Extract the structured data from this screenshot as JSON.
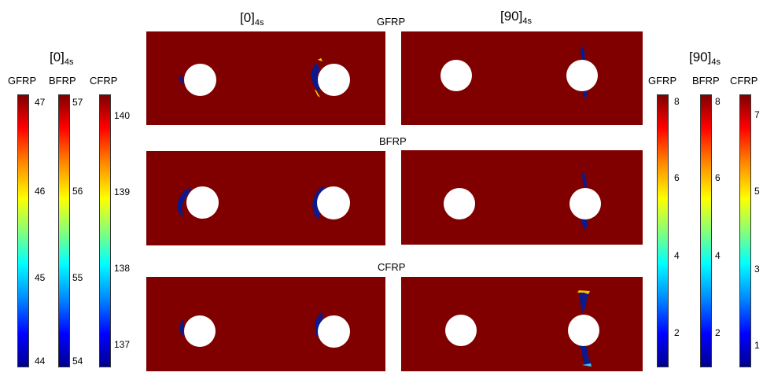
{
  "columns": {
    "left": {
      "base": "[0]",
      "sub": "4s"
    },
    "right": {
      "base": "[90]",
      "sub": "4s"
    }
  },
  "rows": [
    "GFRP",
    "BFRP",
    "CFRP"
  ],
  "left_colorbars": {
    "header": {
      "base": "[0]",
      "sub": "4s"
    },
    "bars": [
      {
        "label": "GFRP",
        "ticks": [
          "47",
          "46",
          "45",
          "44"
        ]
      },
      {
        "label": "BFRP",
        "ticks": [
          "57",
          "56",
          "55",
          "54"
        ]
      },
      {
        "label": "CFRP",
        "ticks": [
          "140",
          "139",
          "138",
          "137"
        ]
      }
    ]
  },
  "right_colorbars": {
    "header": {
      "base": "[90]",
      "sub": "4s"
    },
    "bars": [
      {
        "label": "GFRP",
        "ticks": [
          "8",
          "6",
          "4",
          "2"
        ]
      },
      {
        "label": "BFRP",
        "ticks": [
          "8",
          "6",
          "4",
          "2"
        ]
      },
      {
        "label": "CFRP",
        "ticks": [
          "7",
          "5",
          "3",
          "1"
        ]
      }
    ]
  },
  "colors": {
    "panel": "#800000",
    "damage": "#0a1a8c",
    "hole": "#ffffff"
  }
}
